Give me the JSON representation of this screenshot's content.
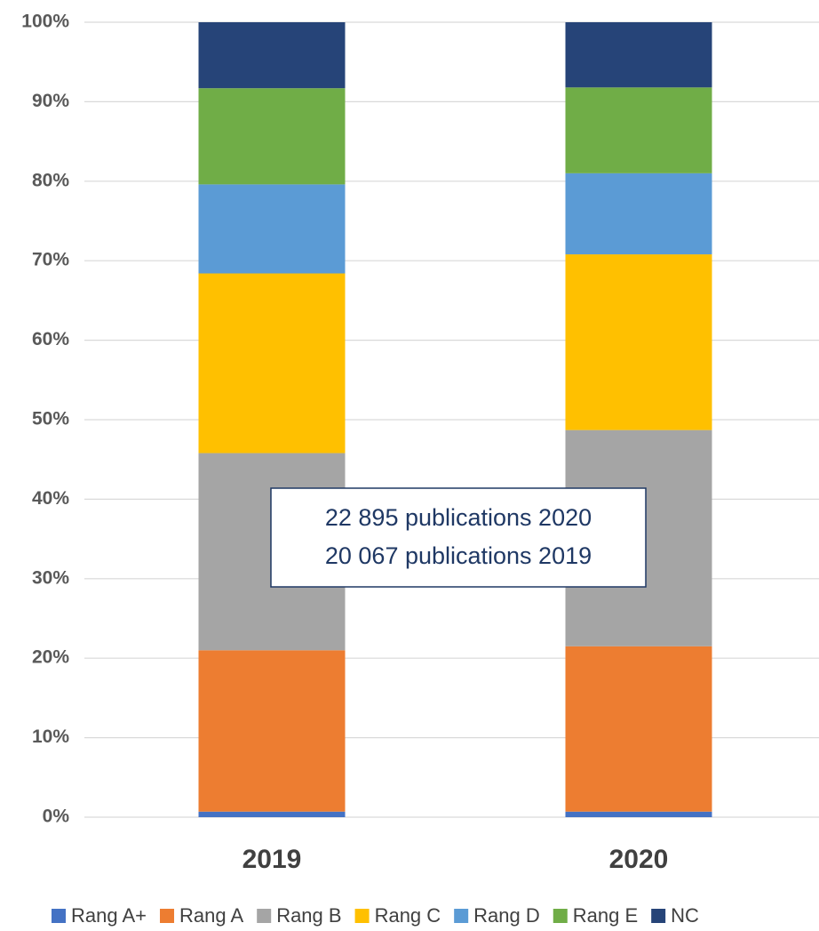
{
  "chart_data": {
    "type": "stacked_bar",
    "categories": [
      "2019",
      "2020"
    ],
    "series": [
      {
        "name": "Rang A+",
        "color": "#4472c4",
        "values": [
          0.7,
          0.7
        ]
      },
      {
        "name": "Rang A",
        "color": "#ed7d31",
        "values": [
          20.3,
          20.8
        ]
      },
      {
        "name": "Rang B",
        "color": "#a5a5a5",
        "values": [
          24.8,
          27.2
        ]
      },
      {
        "name": "Rang C",
        "color": "#ffc000",
        "values": [
          22.6,
          22.1
        ]
      },
      {
        "name": "Rang D",
        "color": "#5b9bd5",
        "values": [
          11.2,
          10.2
        ]
      },
      {
        "name": "Rang E",
        "color": "#70ad47",
        "values": [
          12.1,
          10.8
        ]
      },
      {
        "name": "NC",
        "color": "#264478",
        "values": [
          8.3,
          8.2
        ]
      }
    ],
    "ylim": [
      0,
      100
    ],
    "yticks": [
      {
        "value": 0,
        "label": "0%"
      },
      {
        "value": 10,
        "label": "10%"
      },
      {
        "value": 20,
        "label": "20%"
      },
      {
        "value": 30,
        "label": "30%"
      },
      {
        "value": 40,
        "label": "40%"
      },
      {
        "value": 50,
        "label": "50%"
      },
      {
        "value": 60,
        "label": "60%"
      },
      {
        "value": 70,
        "label": "70%"
      },
      {
        "value": 80,
        "label": "80%"
      },
      {
        "value": 90,
        "label": "90%"
      },
      {
        "value": 100,
        "label": "100%"
      }
    ],
    "grid": true,
    "annotations": [
      "22 895 publications 2020",
      "20 067 publications 2019"
    ],
    "legend": "bottom"
  }
}
